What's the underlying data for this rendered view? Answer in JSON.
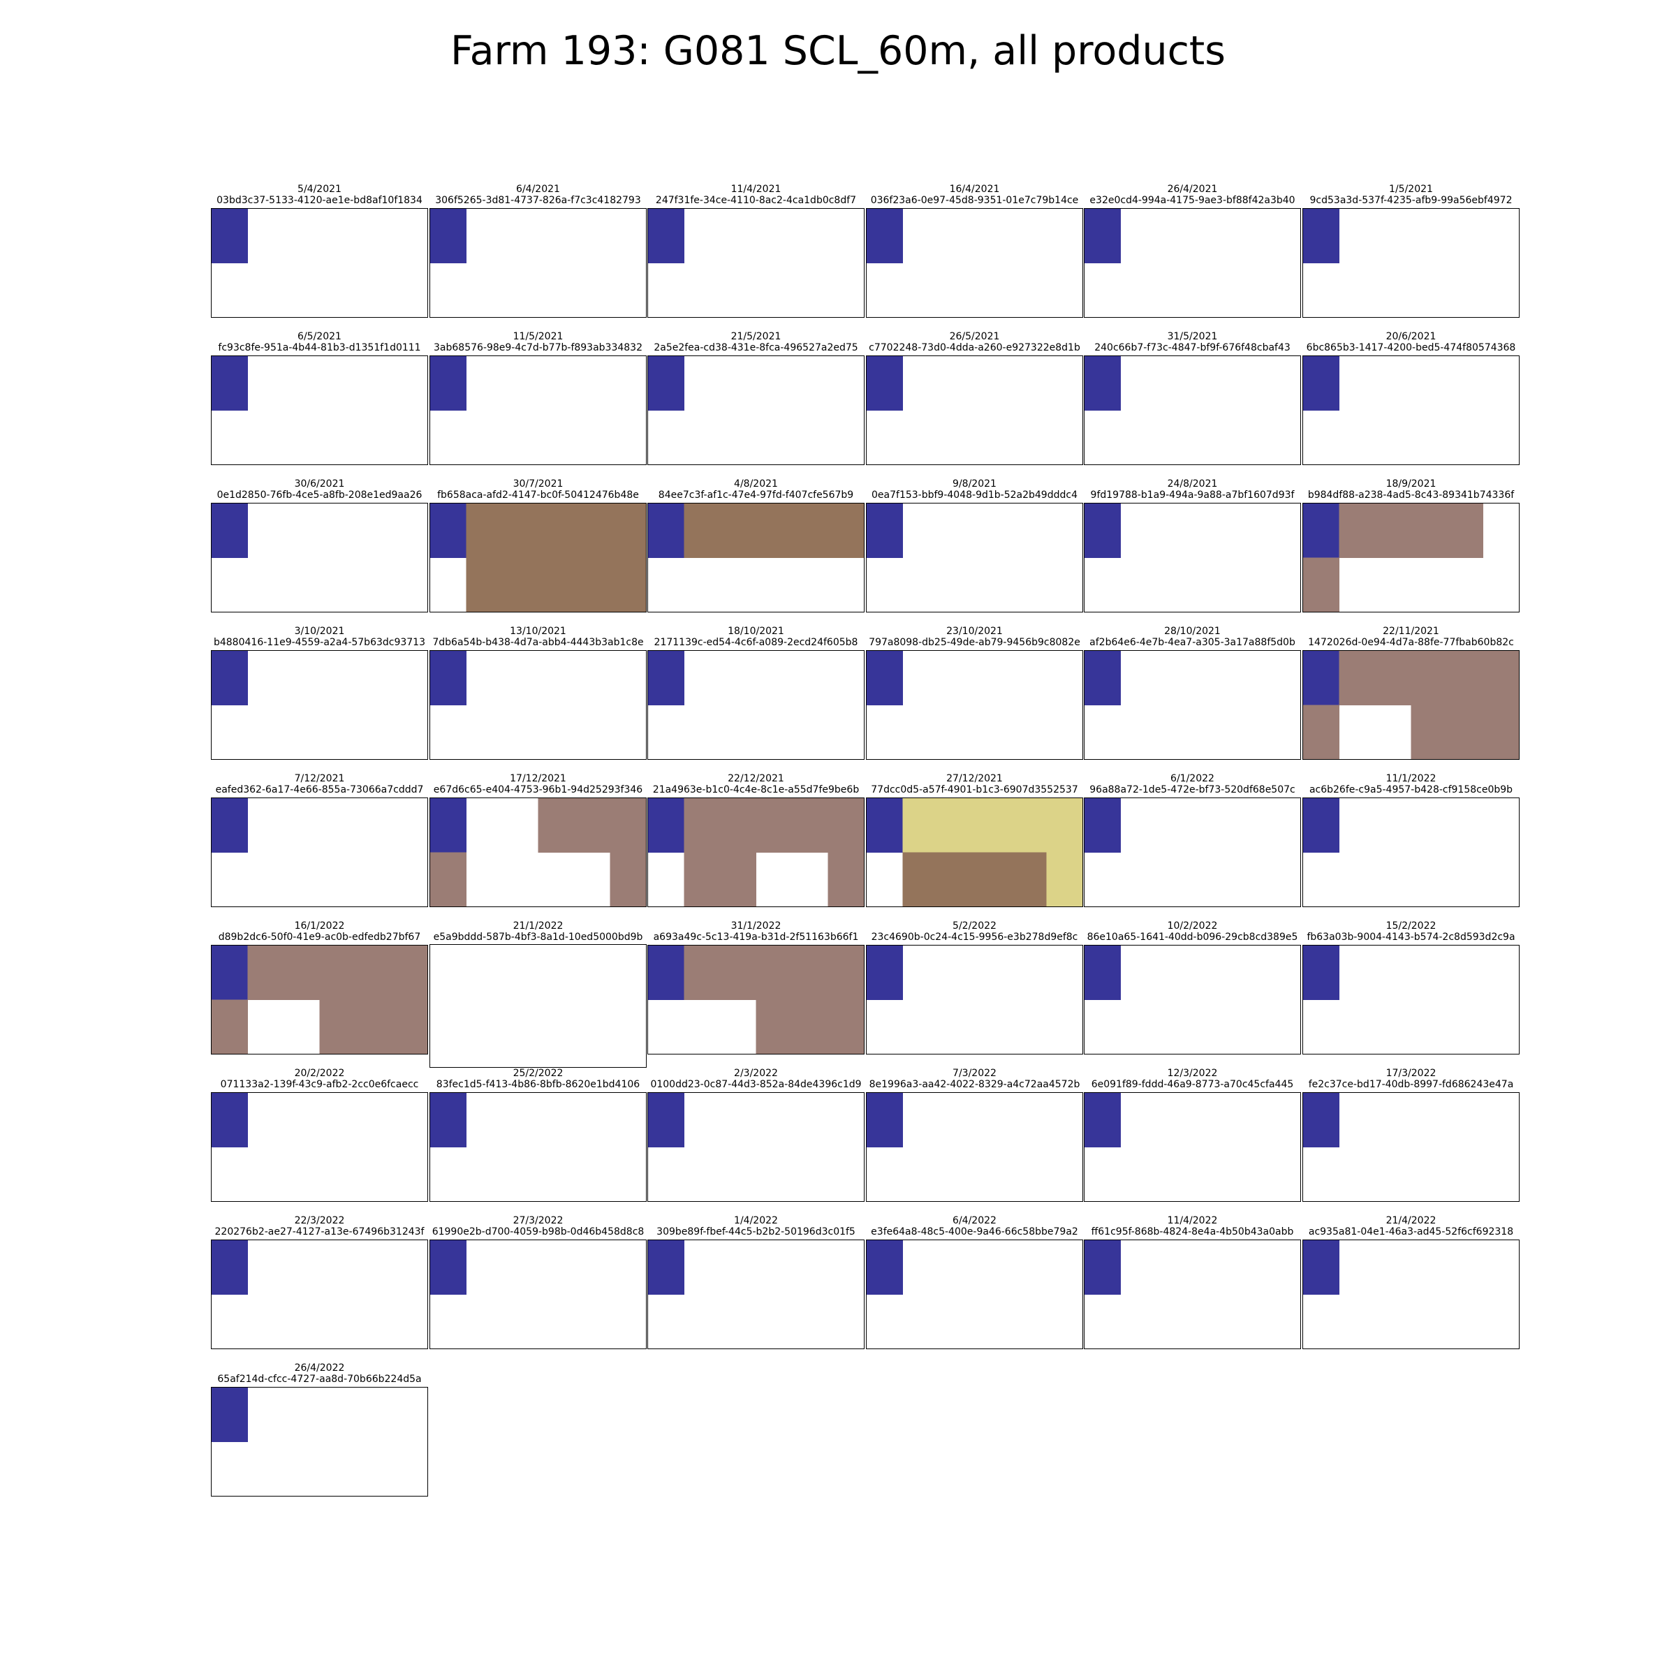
{
  "title": "Farm 193: G081 SCL_60m, all products",
  "colors": {
    "blue": "#373599",
    "brown": "#94745b",
    "greybrown": "#9b7d75",
    "khaki": "#dcd388",
    "white": "#ffffff"
  },
  "chart_data": {
    "type": "heatmap",
    "layout": "small multiples, 6 per row",
    "cell_grid": "2 rows x 4 columns per panel (outer columns half-width)",
    "panels": [
      {
        "date": "5/4/2021",
        "id": "03bd3c37-5133-4120-ae1e-bd8af10f1834",
        "cells": [
          [
            "blue",
            "white",
            "white",
            "white"
          ],
          [
            "white",
            "white",
            "white",
            "white"
          ]
        ]
      },
      {
        "date": "6/4/2021",
        "id": "306f5265-3d81-4737-826a-f7c3c4182793",
        "cells": [
          [
            "blue",
            "white",
            "white",
            "white"
          ],
          [
            "white",
            "white",
            "white",
            "white"
          ]
        ]
      },
      {
        "date": "11/4/2021",
        "id": "247f31fe-34ce-4110-8ac2-4ca1db0c8df7",
        "cells": [
          [
            "blue",
            "white",
            "white",
            "white"
          ],
          [
            "white",
            "white",
            "white",
            "white"
          ]
        ]
      },
      {
        "date": "16/4/2021",
        "id": "036f23a6-0e97-45d8-9351-01e7c79b14ce",
        "cells": [
          [
            "blue",
            "white",
            "white",
            "white"
          ],
          [
            "white",
            "white",
            "white",
            "white"
          ]
        ]
      },
      {
        "date": "26/4/2021",
        "id": "e32e0cd4-994a-4175-9ae3-bf88f42a3b40",
        "cells": [
          [
            "blue",
            "white",
            "white",
            "white"
          ],
          [
            "white",
            "white",
            "white",
            "white"
          ]
        ]
      },
      {
        "date": "1/5/2021",
        "id": "9cd53a3d-537f-4235-afb9-99a56ebf4972",
        "cells": [
          [
            "blue",
            "white",
            "white",
            "white"
          ],
          [
            "white",
            "white",
            "white",
            "white"
          ]
        ]
      },
      {
        "date": "6/5/2021",
        "id": "fc93c8fe-951a-4b44-81b3-d1351f1d0111",
        "cells": [
          [
            "blue",
            "white",
            "white",
            "white"
          ],
          [
            "white",
            "white",
            "white",
            "white"
          ]
        ]
      },
      {
        "date": "11/5/2021",
        "id": "3ab68576-98e9-4c7d-b77b-f893ab334832",
        "cells": [
          [
            "blue",
            "white",
            "white",
            "white"
          ],
          [
            "white",
            "white",
            "white",
            "white"
          ]
        ]
      },
      {
        "date": "21/5/2021",
        "id": "2a5e2fea-cd38-431e-8fca-496527a2ed75",
        "cells": [
          [
            "blue",
            "white",
            "white",
            "white"
          ],
          [
            "white",
            "white",
            "white",
            "white"
          ]
        ]
      },
      {
        "date": "26/5/2021",
        "id": "c7702248-73d0-4dda-a260-e927322e8d1b",
        "cells": [
          [
            "blue",
            "white",
            "white",
            "white"
          ],
          [
            "white",
            "white",
            "white",
            "white"
          ]
        ]
      },
      {
        "date": "31/5/2021",
        "id": "240c66b7-f73c-4847-bf9f-676f48cbaf43",
        "cells": [
          [
            "blue",
            "white",
            "white",
            "white"
          ],
          [
            "white",
            "white",
            "white",
            "white"
          ]
        ]
      },
      {
        "date": "20/6/2021",
        "id": "6bc865b3-1417-4200-bed5-474f80574368",
        "cells": [
          [
            "blue",
            "white",
            "white",
            "white"
          ],
          [
            "white",
            "white",
            "white",
            "white"
          ]
        ]
      },
      {
        "date": "30/6/2021",
        "id": "0e1d2850-76fb-4ce5-a8fb-208e1ed9aa26",
        "cells": [
          [
            "blue",
            "white",
            "white",
            "white"
          ],
          [
            "white",
            "white",
            "white",
            "white"
          ]
        ]
      },
      {
        "date": "30/7/2021",
        "id": "fb658aca-afd2-4147-bc0f-50412476b48e",
        "cells": [
          [
            "blue",
            "brown",
            "brown",
            "brown"
          ],
          [
            "white",
            "brown",
            "brown",
            "brown"
          ]
        ]
      },
      {
        "date": "4/8/2021",
        "id": "84ee7c3f-af1c-47e4-97fd-f407cfe567b9",
        "cells": [
          [
            "blue",
            "brown",
            "brown",
            "brown"
          ],
          [
            "white",
            "white",
            "white",
            "white"
          ]
        ]
      },
      {
        "date": "9/8/2021",
        "id": "0ea7f153-bbf9-4048-9d1b-52a2b49dddc4",
        "cells": [
          [
            "blue",
            "white",
            "white",
            "white"
          ],
          [
            "white",
            "white",
            "white",
            "white"
          ]
        ]
      },
      {
        "date": "24/8/2021",
        "id": "9fd19788-b1a9-494a-9a88-a7bf1607d93f",
        "cells": [
          [
            "blue",
            "white",
            "white",
            "white"
          ],
          [
            "white",
            "white",
            "white",
            "white"
          ]
        ]
      },
      {
        "date": "18/9/2021",
        "id": "b984df88-a238-4ad5-8c43-89341b74336f",
        "cells": [
          [
            "blue",
            "greybrown",
            "greybrown",
            "white"
          ],
          [
            "greybrown",
            "white",
            "white",
            "white"
          ]
        ]
      },
      {
        "date": "3/10/2021",
        "id": "b4880416-11e9-4559-a2a4-57b63dc93713",
        "cells": [
          [
            "blue",
            "white",
            "white",
            "white"
          ],
          [
            "white",
            "white",
            "white",
            "white"
          ]
        ]
      },
      {
        "date": "13/10/2021",
        "id": "7db6a54b-b438-4d7a-abb4-4443b3ab1c8e",
        "cells": [
          [
            "blue",
            "white",
            "white",
            "white"
          ],
          [
            "white",
            "white",
            "white",
            "white"
          ]
        ]
      },
      {
        "date": "18/10/2021",
        "id": "2171139c-ed54-4c6f-a089-2ecd24f605b8",
        "cells": [
          [
            "blue",
            "white",
            "white",
            "white"
          ],
          [
            "white",
            "white",
            "white",
            "white"
          ]
        ]
      },
      {
        "date": "23/10/2021",
        "id": "797a8098-db25-49de-ab79-9456b9c8082e",
        "cells": [
          [
            "blue",
            "white",
            "white",
            "white"
          ],
          [
            "white",
            "white",
            "white",
            "white"
          ]
        ]
      },
      {
        "date": "28/10/2021",
        "id": "af2b64e6-4e7b-4ea7-a305-3a17a88f5d0b",
        "cells": [
          [
            "blue",
            "white",
            "white",
            "white"
          ],
          [
            "white",
            "white",
            "white",
            "white"
          ]
        ]
      },
      {
        "date": "22/11/2021",
        "id": "1472026d-0e94-4d7a-88fe-77fbab60b82c",
        "cells": [
          [
            "blue",
            "greybrown",
            "greybrown",
            "greybrown"
          ],
          [
            "greybrown",
            "white",
            "greybrown",
            "greybrown"
          ]
        ]
      },
      {
        "date": "7/12/2021",
        "id": "eafed362-6a17-4e66-855a-73066a7cddd7",
        "cells": [
          [
            "blue",
            "white",
            "white",
            "white"
          ],
          [
            "white",
            "white",
            "white",
            "white"
          ]
        ]
      },
      {
        "date": "17/12/2021",
        "id": "e67d6c65-e404-4753-96b1-94d25293f346",
        "cells": [
          [
            "blue",
            "white",
            "greybrown",
            "greybrown"
          ],
          [
            "greybrown",
            "white",
            "white",
            "greybrown"
          ]
        ]
      },
      {
        "date": "22/12/2021",
        "id": "21a4963e-b1c0-4c4e-8c1e-a55d7fe9be6b",
        "cells": [
          [
            "blue",
            "greybrown",
            "greybrown",
            "greybrown"
          ],
          [
            "white",
            "greybrown",
            "white",
            "greybrown"
          ]
        ]
      },
      {
        "date": "27/12/2021",
        "id": "77dcc0d5-a57f-4901-b1c3-6907d3552537",
        "cells": [
          [
            "blue",
            "khaki",
            "khaki",
            "khaki"
          ],
          [
            "white",
            "brown",
            "brown",
            "khaki"
          ]
        ]
      },
      {
        "date": "6/1/2022",
        "id": "96a88a72-1de5-472e-bf73-520df68e507c",
        "cells": [
          [
            "blue",
            "white",
            "white",
            "white"
          ],
          [
            "white",
            "white",
            "white",
            "white"
          ]
        ]
      },
      {
        "date": "11/1/2022",
        "id": "ac6b26fe-c9a5-4957-b428-cf9158ce0b9b",
        "cells": [
          [
            "blue",
            "white",
            "white",
            "white"
          ],
          [
            "white",
            "white",
            "white",
            "white"
          ]
        ]
      },
      {
        "date": "16/1/2022",
        "id": "d89b2dc6-50f0-41e9-ac0b-edfedb27bf67",
        "cells": [
          [
            "blue",
            "greybrown",
            "greybrown",
            "greybrown"
          ],
          [
            "greybrown",
            "white",
            "greybrown",
            "greybrown"
          ]
        ]
      },
      {
        "date": "21/1/2022",
        "id": "e5a9bddd-587b-4bf3-8a1d-10ed5000bd9b",
        "empty": true,
        "cells": [
          [
            "white",
            "white",
            "white",
            "white"
          ],
          [
            "white",
            "white",
            "white",
            "white"
          ]
        ]
      },
      {
        "date": "31/1/2022",
        "id": "a693a49c-5c13-419a-b31d-2f51163b66f1",
        "cells": [
          [
            "blue",
            "greybrown",
            "greybrown",
            "greybrown"
          ],
          [
            "white",
            "white",
            "greybrown",
            "greybrown"
          ]
        ]
      },
      {
        "date": "5/2/2022",
        "id": "23c4690b-0c24-4c15-9956-e3b278d9ef8c",
        "cells": [
          [
            "blue",
            "white",
            "white",
            "white"
          ],
          [
            "white",
            "white",
            "white",
            "white"
          ]
        ]
      },
      {
        "date": "10/2/2022",
        "id": "86e10a65-1641-40dd-b096-29cb8cd389e5",
        "cells": [
          [
            "blue",
            "white",
            "white",
            "white"
          ],
          [
            "white",
            "white",
            "white",
            "white"
          ]
        ]
      },
      {
        "date": "15/2/2022",
        "id": "fb63a03b-9004-4143-b574-2c8d593d2c9a",
        "cells": [
          [
            "blue",
            "white",
            "white",
            "white"
          ],
          [
            "white",
            "white",
            "white",
            "white"
          ]
        ]
      },
      {
        "date": "20/2/2022",
        "id": "071133a2-139f-43c9-afb2-2cc0e6fcaecc",
        "cells": [
          [
            "blue",
            "white",
            "white",
            "white"
          ],
          [
            "white",
            "white",
            "white",
            "white"
          ]
        ]
      },
      {
        "date": "25/2/2022",
        "id": "83fec1d5-f413-4b86-8bfb-8620e1bd4106",
        "cells": [
          [
            "blue",
            "white",
            "white",
            "white"
          ],
          [
            "white",
            "white",
            "white",
            "white"
          ]
        ]
      },
      {
        "date": "2/3/2022",
        "id": "0100dd23-0c87-44d3-852a-84de4396c1d9",
        "cells": [
          [
            "blue",
            "white",
            "white",
            "white"
          ],
          [
            "white",
            "white",
            "white",
            "white"
          ]
        ]
      },
      {
        "date": "7/3/2022",
        "id": "8e1996a3-aa42-4022-8329-a4c72aa4572b",
        "cells": [
          [
            "blue",
            "white",
            "white",
            "white"
          ],
          [
            "white",
            "white",
            "white",
            "white"
          ]
        ]
      },
      {
        "date": "12/3/2022",
        "id": "6e091f89-fddd-46a9-8773-a70c45cfa445",
        "cells": [
          [
            "blue",
            "white",
            "white",
            "white"
          ],
          [
            "white",
            "white",
            "white",
            "white"
          ]
        ]
      },
      {
        "date": "17/3/2022",
        "id": "fe2c37ce-bd17-40db-8997-fd686243e47a",
        "cells": [
          [
            "blue",
            "white",
            "white",
            "white"
          ],
          [
            "white",
            "white",
            "white",
            "white"
          ]
        ]
      },
      {
        "date": "22/3/2022",
        "id": "220276b2-ae27-4127-a13e-67496b31243f",
        "cells": [
          [
            "blue",
            "white",
            "white",
            "white"
          ],
          [
            "white",
            "white",
            "white",
            "white"
          ]
        ]
      },
      {
        "date": "27/3/2022",
        "id": "61990e2b-d700-4059-b98b-0d46b458d8c8",
        "cells": [
          [
            "blue",
            "white",
            "white",
            "white"
          ],
          [
            "white",
            "white",
            "white",
            "white"
          ]
        ]
      },
      {
        "date": "1/4/2022",
        "id": "309be89f-fbef-44c5-b2b2-50196d3c01f5",
        "cells": [
          [
            "blue",
            "white",
            "white",
            "white"
          ],
          [
            "white",
            "white",
            "white",
            "white"
          ]
        ]
      },
      {
        "date": "6/4/2022",
        "id": "e3fe64a8-48c5-400e-9a46-66c58bbe79a2",
        "cells": [
          [
            "blue",
            "white",
            "white",
            "white"
          ],
          [
            "white",
            "white",
            "white",
            "white"
          ]
        ]
      },
      {
        "date": "11/4/2022",
        "id": "ff61c95f-868b-4824-8e4a-4b50b43a0abb",
        "cells": [
          [
            "blue",
            "white",
            "white",
            "white"
          ],
          [
            "white",
            "white",
            "white",
            "white"
          ]
        ]
      },
      {
        "date": "21/4/2022",
        "id": "ac935a81-04e1-46a3-ad45-52f6cf692318",
        "cells": [
          [
            "blue",
            "white",
            "white",
            "white"
          ],
          [
            "white",
            "white",
            "white",
            "white"
          ]
        ]
      },
      {
        "date": "26/4/2022",
        "id": "65af214d-cfcc-4727-aa8d-70b66b224d5a",
        "cells": [
          [
            "blue",
            "white",
            "white",
            "white"
          ],
          [
            "white",
            "white",
            "white",
            "white"
          ]
        ]
      }
    ]
  }
}
